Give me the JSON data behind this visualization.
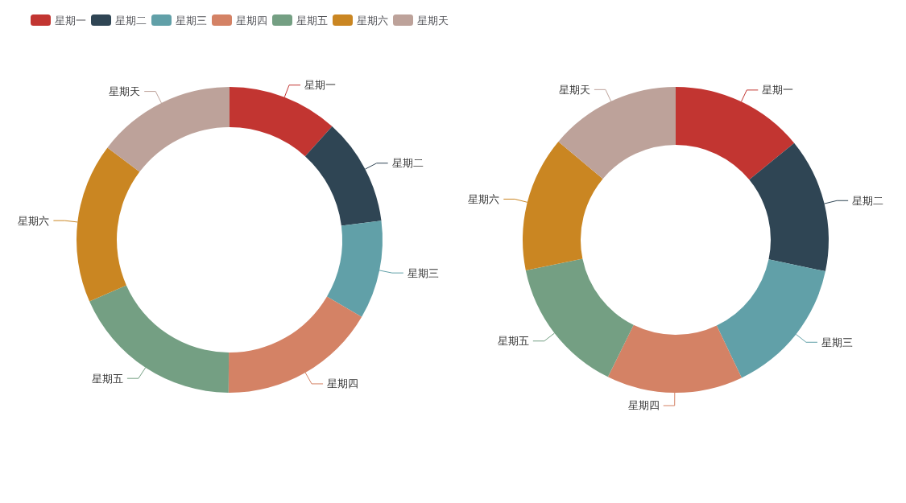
{
  "chart_data": [
    {
      "type": "donut",
      "categories": [
        "星期一",
        "星期二",
        "星期三",
        "星期四",
        "星期五",
        "星期六",
        "星期天"
      ],
      "colors": [
        "#c23531",
        "#2f4554",
        "#61a0a8",
        "#d48265",
        "#749f83",
        "#ca8622",
        "#bda29a"
      ],
      "legend": "top",
      "values": [
        11.7,
        11.3,
        10.4,
        16.7,
        18.3,
        16.9,
        14.7
      ]
    },
    {
      "type": "donut",
      "categories": [
        "星期一",
        "星期二",
        "星期三",
        "星期四",
        "星期五",
        "星期六",
        "星期天"
      ],
      "colors": [
        "#c23531",
        "#2f4554",
        "#61a0a8",
        "#d48265",
        "#749f83",
        "#ca8622",
        "#bda29a"
      ],
      "values": [
        14.1,
        14.2,
        14.6,
        14.4,
        14.5,
        14.3,
        13.9
      ]
    }
  ]
}
